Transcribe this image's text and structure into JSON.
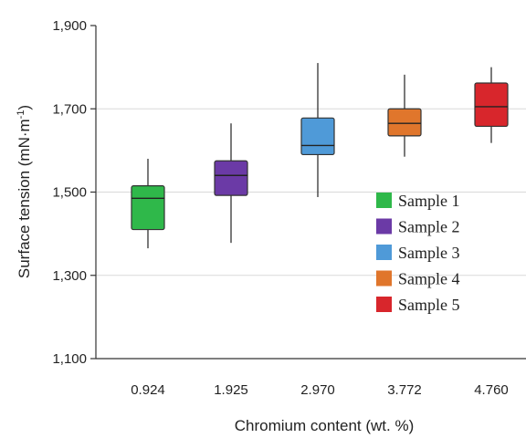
{
  "chart_data": {
    "type": "box",
    "xlabel": "Chromium content (wt. %)",
    "ylabel": "Surface tension (mN·m",
    "ylabel_sup": "-1",
    "ylabel_close": ")",
    "ylim": [
      1100,
      1900
    ],
    "yticks": [
      1100,
      1300,
      1500,
      1700,
      1900
    ],
    "ytick_labels": [
      "1,100",
      "1,300",
      "1,500",
      "1,700",
      "1,900"
    ],
    "grid": true,
    "legend_position": "center-right",
    "categories": [
      "0.924",
      "1.925",
      "2.970",
      "3.772",
      "4.760"
    ],
    "series": [
      {
        "name": "Sample  1",
        "color": "#2fb84a",
        "min": 1365,
        "q1": 1410,
        "median": 1485,
        "q3": 1515,
        "max": 1580
      },
      {
        "name": "Sample  2",
        "color": "#6b3aa6",
        "min": 1378,
        "q1": 1492,
        "median": 1540,
        "q3": 1575,
        "max": 1665
      },
      {
        "name": "Sample  3",
        "color": "#4f9ad8",
        "min": 1488,
        "q1": 1590,
        "median": 1612,
        "q3": 1678,
        "max": 1810
      },
      {
        "name": "Sample  4",
        "color": "#e0762c",
        "min": 1585,
        "q1": 1635,
        "median": 1665,
        "q3": 1700,
        "max": 1782
      },
      {
        "name": "Sample  5",
        "color": "#d8262c",
        "min": 1618,
        "q1": 1658,
        "median": 1705,
        "q3": 1762,
        "max": 1800
      }
    ]
  }
}
